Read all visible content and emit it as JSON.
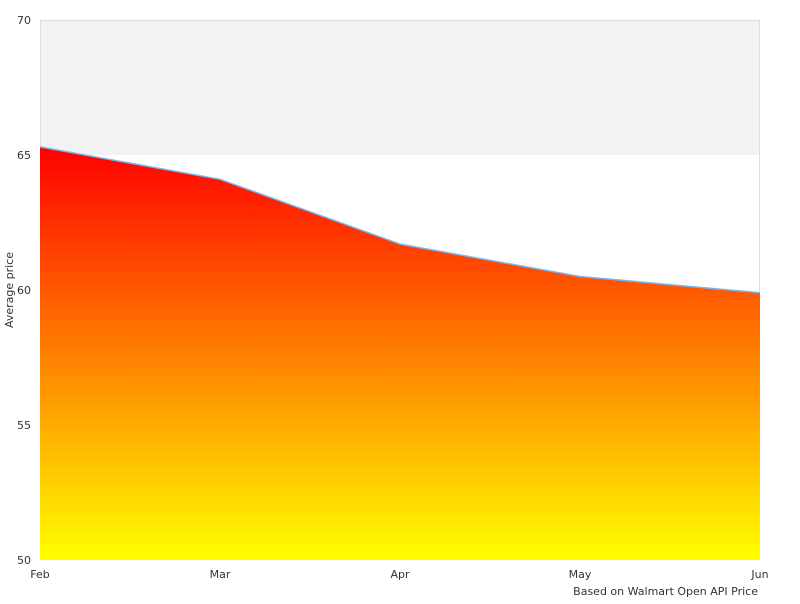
{
  "chart_data": {
    "type": "area",
    "x": [
      "Feb",
      "Mar",
      "Apr",
      "May",
      "Jun"
    ],
    "series": [
      {
        "values": [
          65.3,
          64.1,
          61.7,
          60.5,
          59.9
        ]
      }
    ],
    "ylabel": "Average price",
    "xlabel": "",
    "title": "",
    "ylim": [
      50,
      70
    ],
    "y_ticks": [
      50,
      55,
      60,
      65,
      70
    ],
    "shaded_band": [
      65,
      70
    ],
    "grid": false,
    "footer_note": "Based on Walmart Open API Price",
    "colors": {
      "fill_top": "#ff0000",
      "fill_bottom": "#ffff00",
      "line": "#7cb5ec",
      "band": "#f2f2f2",
      "frame": "#dddddd",
      "text": "#333333"
    }
  }
}
